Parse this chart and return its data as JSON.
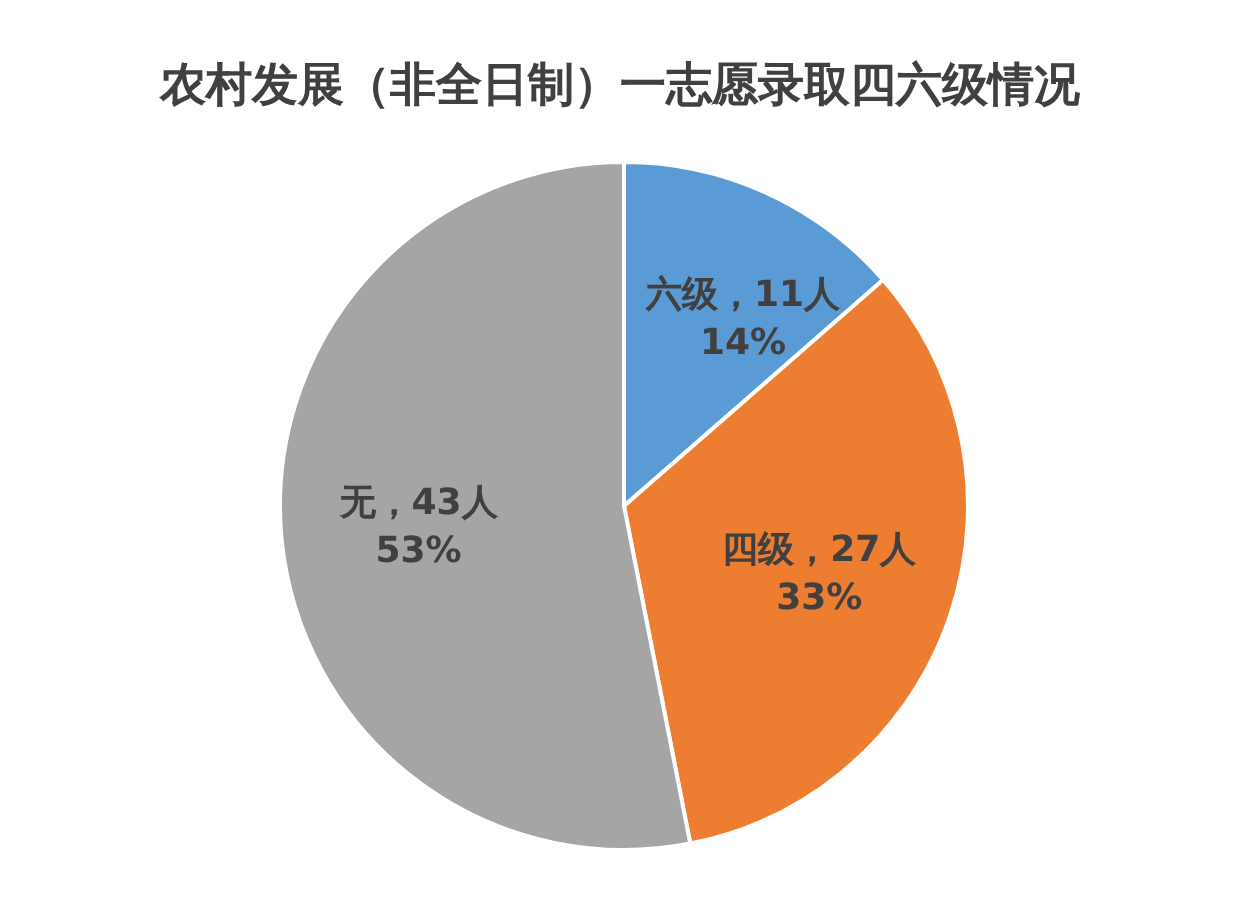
{
  "chart_data": {
    "type": "pie",
    "title": "农村发展（非全日制）一志愿录取四六级情况",
    "categories": [
      "六级",
      "四级",
      "无"
    ],
    "values": [
      11,
      27,
      43
    ],
    "colors": [
      "#5b9bd5",
      "#ed7d31",
      "#a5a5a5"
    ],
    "value_labels": [
      "11人\n14%",
      "27人\n33%",
      "43人\n53%"
    ]
  }
}
